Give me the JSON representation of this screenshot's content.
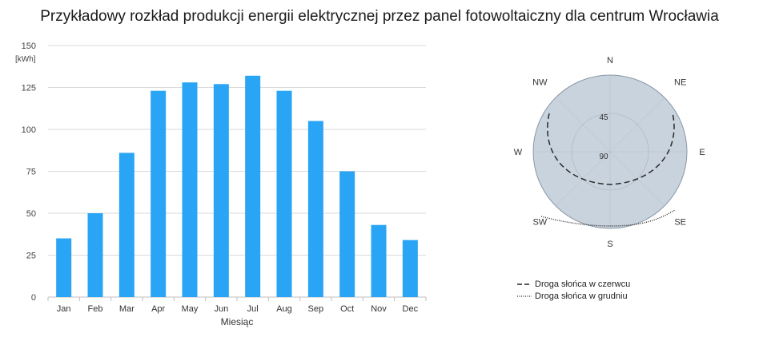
{
  "chart_data": [
    {
      "type": "bar",
      "title": "Przykładowy rozkład produkcji energii elektrycznej przez panel fotowoltaiczny dla centrum Wrocławia",
      "xlabel": "Miesiąc",
      "ylabel": "[kWh]",
      "ylim": [
        0,
        150
      ],
      "yticks": [
        0,
        25,
        50,
        75,
        100,
        125,
        150
      ],
      "grid": true,
      "bar_color": "#2aa4f4",
      "categories": [
        "Jan",
        "Feb",
        "Mar",
        "Apr",
        "May",
        "Jun",
        "Jul",
        "Aug",
        "Sep",
        "Oct",
        "Nov",
        "Dec"
      ],
      "values": [
        35,
        50,
        86,
        123,
        128,
        127,
        132,
        123,
        105,
        75,
        43,
        34
      ]
    },
    {
      "type": "polar",
      "directions": [
        "N",
        "NE",
        "E",
        "SE",
        "S",
        "SW",
        "W",
        "NW"
      ],
      "elevation_rings": [
        "45",
        "90"
      ],
      "disc_color": "#c8d3de",
      "series": [
        {
          "name": "Droga słońca w czerwcu",
          "style": "dashed"
        },
        {
          "name": "Droga słońca w grudniu",
          "style": "dotted"
        }
      ]
    }
  ]
}
